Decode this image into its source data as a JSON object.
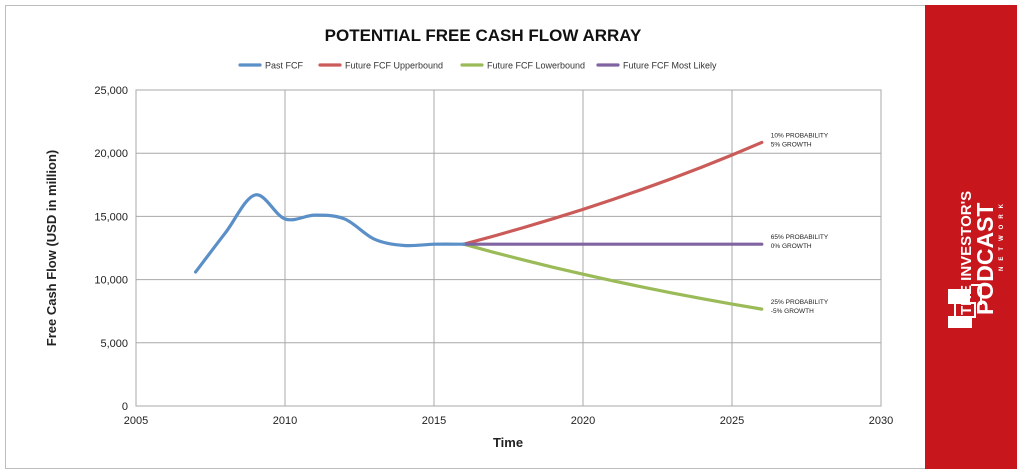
{
  "chart_data": {
    "type": "line",
    "title": "POTENTIAL FREE CASH FLOW ARRAY",
    "xlabel": "Time",
    "ylabel": "Free Cash Flow (USD in million)",
    "xlim": [
      2005,
      2030
    ],
    "ylim": [
      0,
      25000
    ],
    "x_ticks": [
      2005,
      2010,
      2015,
      2020,
      2025,
      2030
    ],
    "y_ticks": [
      0,
      5000,
      10000,
      15000,
      20000,
      25000
    ],
    "x_tick_labels": [
      "2005",
      "2010",
      "2015",
      "2020",
      "2025",
      "2030"
    ],
    "y_tick_labels": [
      "0",
      "5,000",
      "10,000",
      "15,000",
      "20,000",
      "25,000"
    ],
    "grid": true,
    "legend_position": "top",
    "series": [
      {
        "name": "Past FCF",
        "color": "#5b8fc7",
        "smooth": true,
        "x": [
          2007,
          2008,
          2009,
          2010,
          2011,
          2012,
          2013,
          2014,
          2015,
          2016
        ],
        "y": [
          10600,
          13700,
          16700,
          14800,
          15100,
          14800,
          13200,
          12700,
          12800,
          12800
        ]
      },
      {
        "name": "Future FCF Upperbound",
        "color": "#cb5b59",
        "smooth": false,
        "x": [
          2016,
          2017,
          2018,
          2019,
          2020,
          2021,
          2022,
          2023,
          2024,
          2025,
          2026
        ],
        "y": [
          12800,
          13440,
          14112,
          14818,
          15558,
          16336,
          17153,
          18011,
          18912,
          19857,
          20850
        ]
      },
      {
        "name": "Future FCF Lowerbound",
        "color": "#9bbb59",
        "smooth": false,
        "x": [
          2016,
          2017,
          2018,
          2019,
          2020,
          2021,
          2022,
          2023,
          2024,
          2025,
          2026
        ],
        "y": [
          12800,
          12160,
          11552,
          10974,
          10426,
          9904,
          9409,
          8939,
          8492,
          8067,
          7664
        ]
      },
      {
        "name": "Future FCF Most Likely",
        "color": "#8064a2",
        "smooth": false,
        "x": [
          2016,
          2026
        ],
        "y": [
          12800,
          12800
        ]
      }
    ],
    "annotations": [
      {
        "lines": [
          "10% PROBABILITY",
          "5% GROWTH"
        ],
        "x": 2026,
        "y": 20850
      },
      {
        "lines": [
          "65% PROBABILITY",
          "0% GROWTH"
        ],
        "x": 2026,
        "y": 12800
      },
      {
        "lines": [
          "25% PROBABILITY",
          "-5% GROWTH"
        ],
        "x": 2026,
        "y": 7664
      }
    ]
  },
  "brand": {
    "line1": "THE INVESTOR'S",
    "line2": "PODCAST",
    "line3": "NETWORK",
    "background": "#c8161d"
  }
}
